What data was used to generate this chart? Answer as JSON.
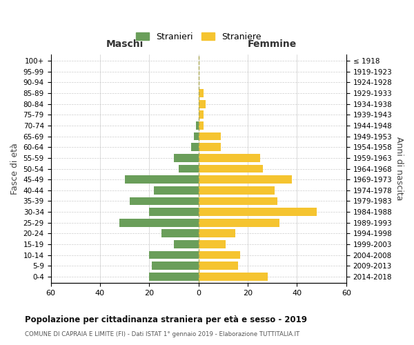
{
  "age_groups": [
    "0-4",
    "5-9",
    "10-14",
    "15-19",
    "20-24",
    "25-29",
    "30-34",
    "35-39",
    "40-44",
    "45-49",
    "50-54",
    "55-59",
    "60-64",
    "65-69",
    "70-74",
    "75-79",
    "80-84",
    "85-89",
    "90-94",
    "95-99",
    "100+"
  ],
  "birth_years": [
    "2014-2018",
    "2009-2013",
    "2004-2008",
    "1999-2003",
    "1994-1998",
    "1989-1993",
    "1984-1988",
    "1979-1983",
    "1974-1978",
    "1969-1973",
    "1964-1968",
    "1959-1963",
    "1954-1958",
    "1949-1953",
    "1944-1948",
    "1939-1943",
    "1934-1938",
    "1929-1933",
    "1924-1928",
    "1919-1923",
    "≤ 1918"
  ],
  "maschi": [
    20,
    19,
    20,
    10,
    15,
    32,
    20,
    28,
    18,
    30,
    8,
    10,
    3,
    2,
    1,
    0,
    0,
    0,
    0,
    0,
    0
  ],
  "femmine": [
    28,
    16,
    17,
    11,
    15,
    33,
    48,
    32,
    31,
    38,
    26,
    25,
    9,
    9,
    2,
    2,
    3,
    2,
    0,
    0,
    0
  ],
  "color_maschi": "#6a9e5a",
  "color_femmine": "#f5c430",
  "title": "Popolazione per cittadinanza straniera per età e sesso - 2019",
  "subtitle": "COMUNE DI CAPRAIA E LIMITE (FI) - Dati ISTAT 1° gennaio 2019 - Elaborazione TUTTITALIA.IT",
  "xlabel_maschi": "Maschi",
  "xlabel_femmine": "Femmine",
  "ylabel_left": "Fasce di età",
  "ylabel_right": "Anni di nascita",
  "legend_maschi": "Stranieri",
  "legend_femmine": "Straniere",
  "xlim": 60,
  "background_color": "#ffffff",
  "grid_color": "#cccccc"
}
